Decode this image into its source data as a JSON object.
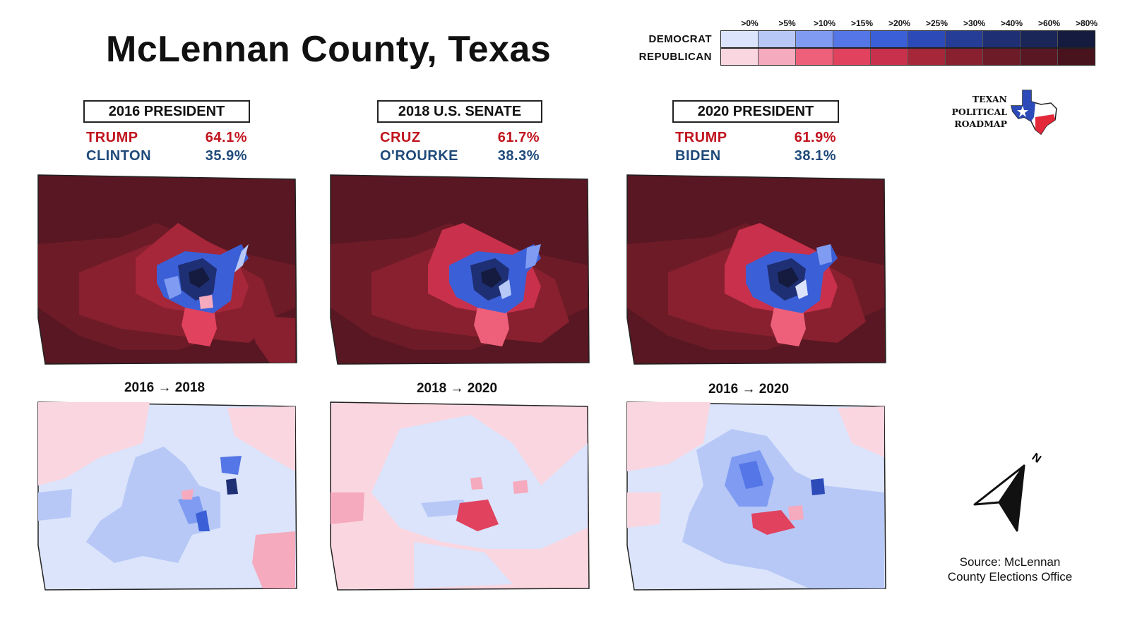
{
  "title": "McLennan County, Texas",
  "legend": {
    "thresholds": [
      ">0%",
      ">5%",
      ">10%",
      ">15%",
      ">20%",
      ">25%",
      ">30%",
      ">40%",
      ">60%",
      ">80%"
    ],
    "democrat_label": "DEMOCRAT",
    "republican_label": "REPUBLICAN",
    "democrat_colors": [
      "#dbe4fb",
      "#b7c8f7",
      "#7f9cf2",
      "#5576e6",
      "#3b5fd6",
      "#2c4bb8",
      "#253d96",
      "#1f2f74",
      "#1a2558",
      "#141b3e"
    ],
    "republican_colors": [
      "#fad6e0",
      "#f6aabd",
      "#ee6079",
      "#e1425e",
      "#c9304b",
      "#a62739",
      "#88202f",
      "#6d1b27",
      "#581722",
      "#48131c"
    ]
  },
  "logo": {
    "line1": "TEXAN",
    "line2": "POLITICAL",
    "line3": "ROADMAP"
  },
  "races": [
    {
      "title": "2016 PRESIDENT",
      "rep_name": "TRUMP",
      "rep_pct": "64.1%",
      "dem_name": "CLINTON",
      "dem_pct": "35.9%"
    },
    {
      "title": "2018 U.S. SENATE",
      "rep_name": "CRUZ",
      "rep_pct": "61.7%",
      "dem_name": "O'ROURKE",
      "dem_pct": "38.3%"
    },
    {
      "title": "2020 PRESIDENT",
      "rep_name": "TRUMP",
      "rep_pct": "61.9%",
      "dem_name": "BIDEN",
      "dem_pct": "38.1%"
    }
  ],
  "swings": [
    {
      "label": "2016 → 2018"
    },
    {
      "label": "2018 → 2020"
    },
    {
      "label": "2016 → 2020"
    }
  ],
  "north_label": "N",
  "source": {
    "line1": "Source: McLennan",
    "line2": "County Elections Office"
  }
}
